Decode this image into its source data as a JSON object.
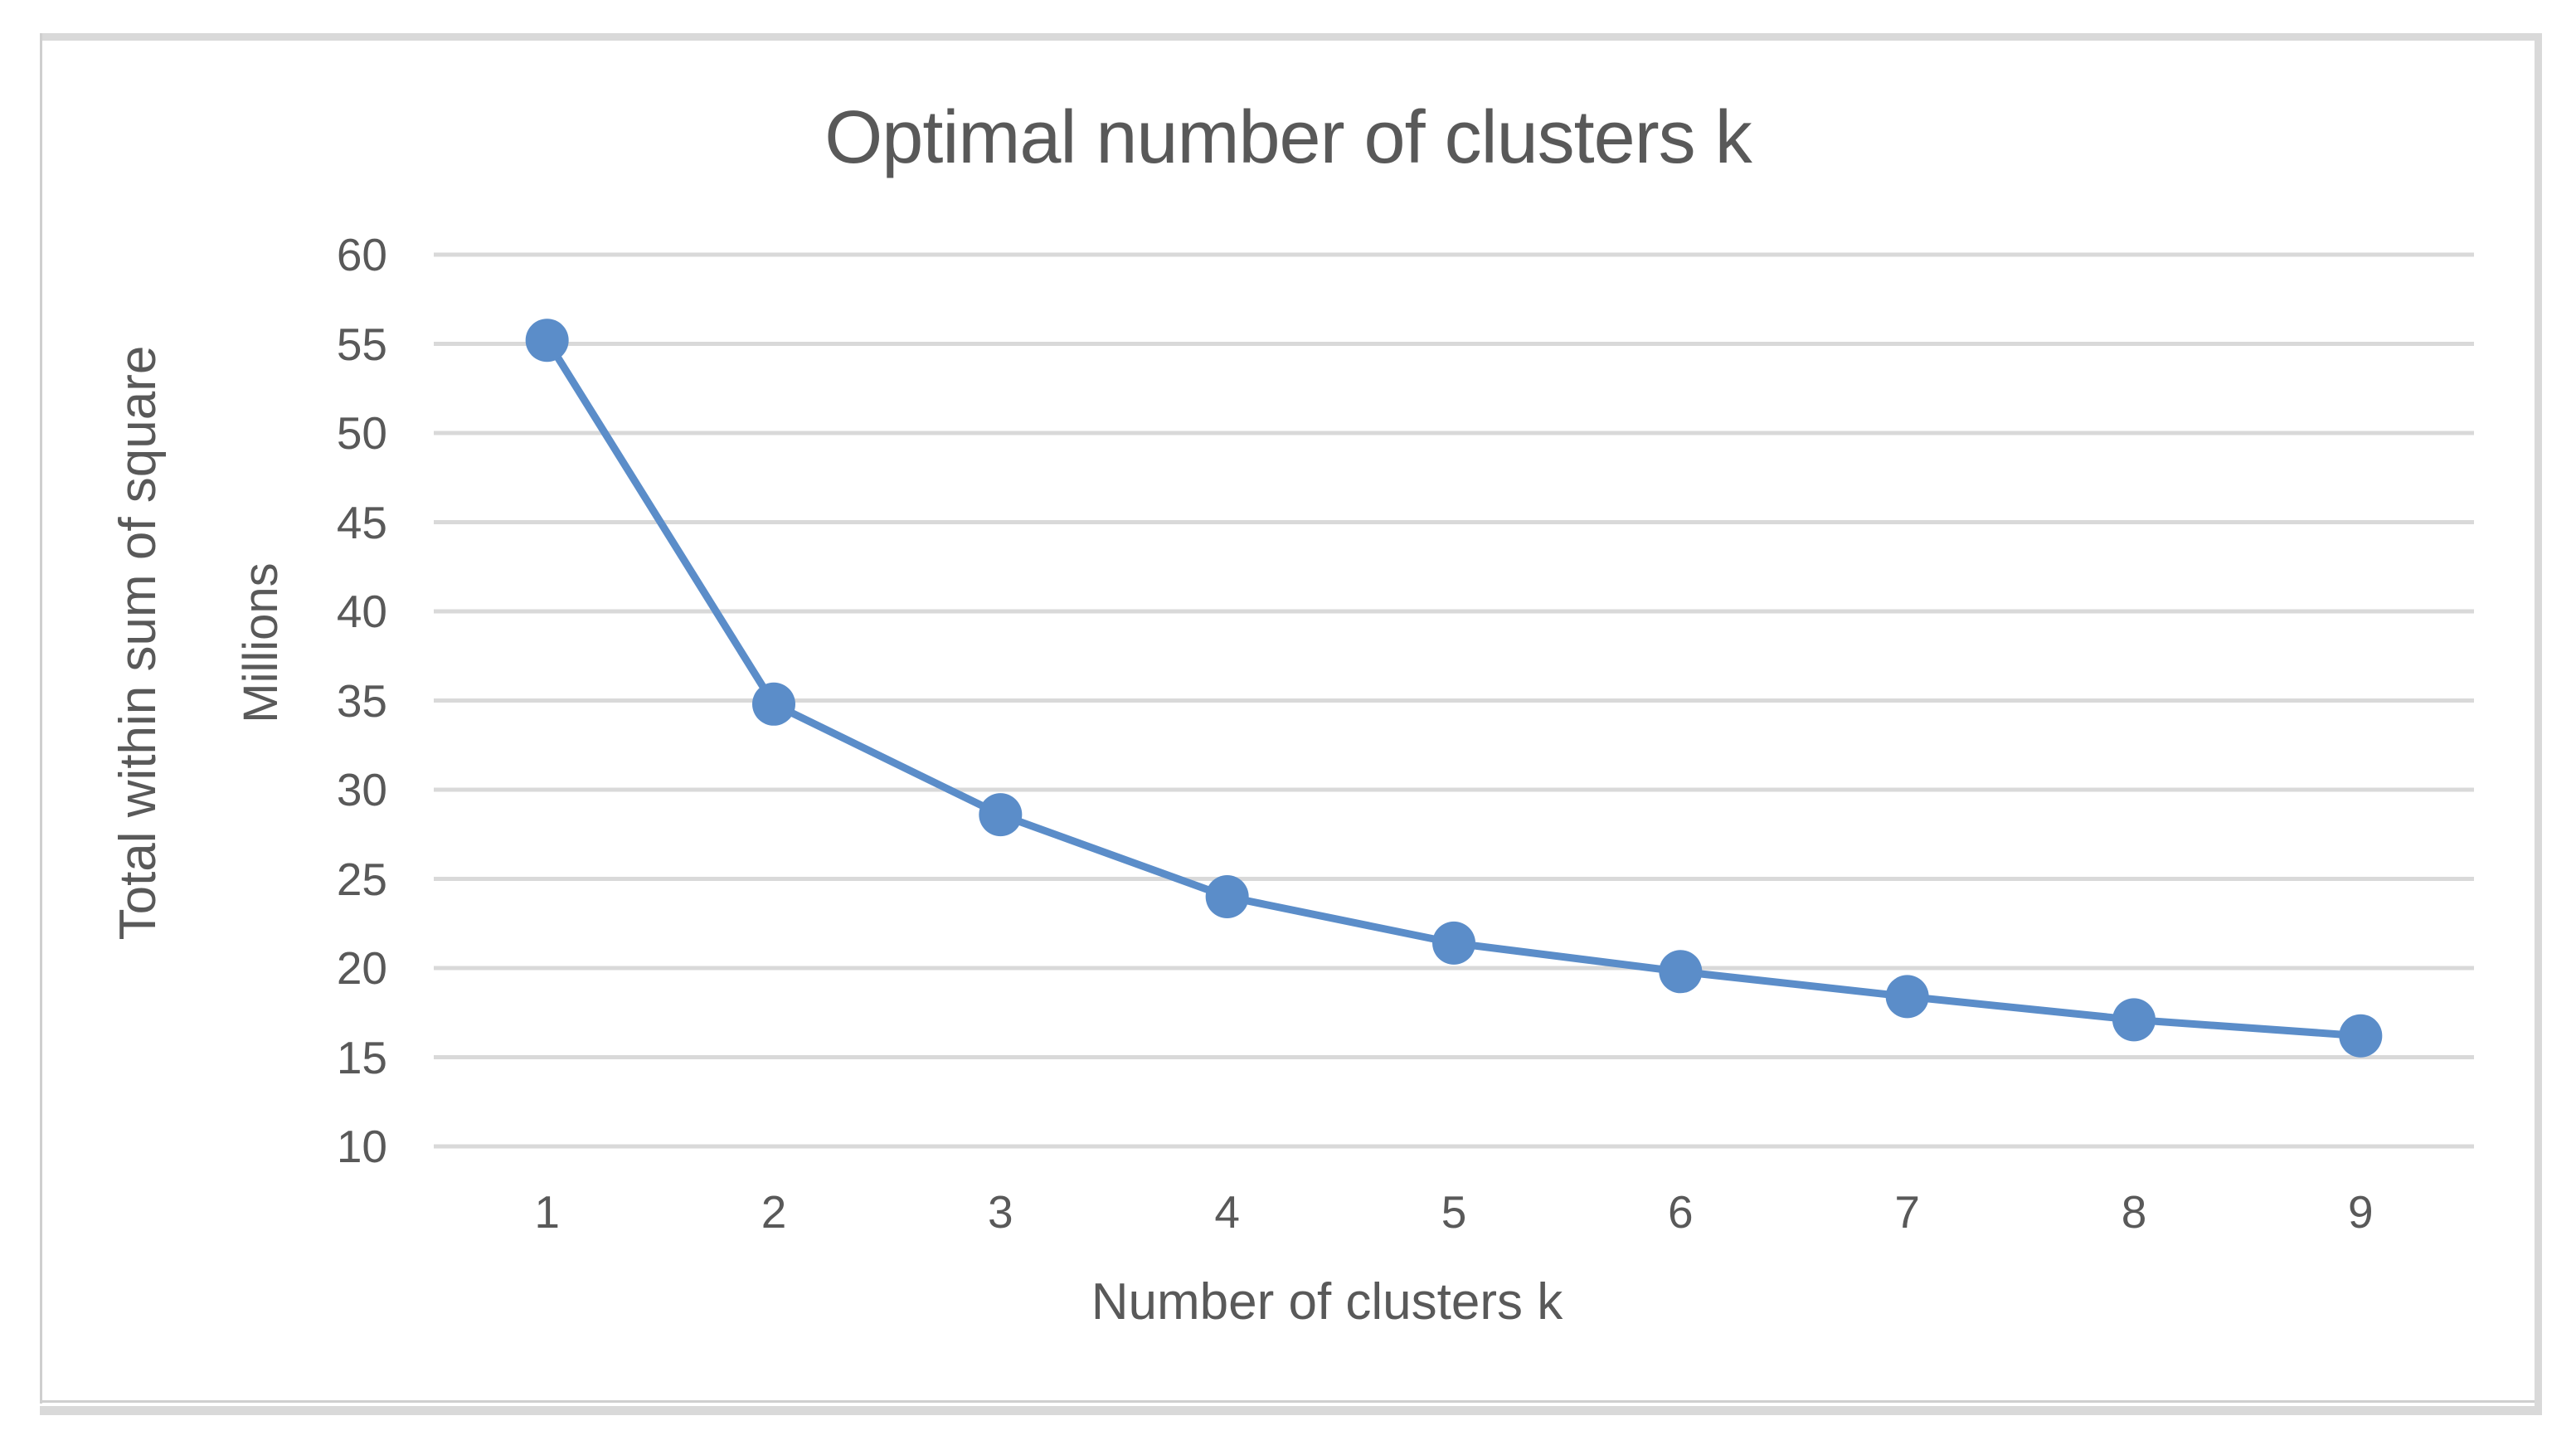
{
  "chart_data": {
    "type": "line",
    "title": "Optimal number of clusters k",
    "xlabel": "Number of clusters k",
    "ylabel": "Total within sum of square",
    "y_units_label": "Millions",
    "x": [
      1,
      2,
      3,
      4,
      5,
      6,
      7,
      8,
      9
    ],
    "values": [
      55.2,
      34.8,
      28.6,
      24.0,
      21.4,
      19.8,
      18.4,
      17.1,
      16.2
    ],
    "values_unit": "millions",
    "ylim": [
      10,
      60
    ],
    "ytick_step": 5,
    "yticks": [
      60,
      55,
      50,
      45,
      40,
      35,
      30,
      25,
      20,
      15,
      10
    ],
    "grid": "horizontal",
    "legend": "none",
    "marker": "circle",
    "colors": {
      "series": "#5b8dc9",
      "gridline": "#d9d9d9",
      "text": "#595959",
      "frame": "#cfcfcf",
      "frame_bar": "#d9d9d9"
    }
  }
}
